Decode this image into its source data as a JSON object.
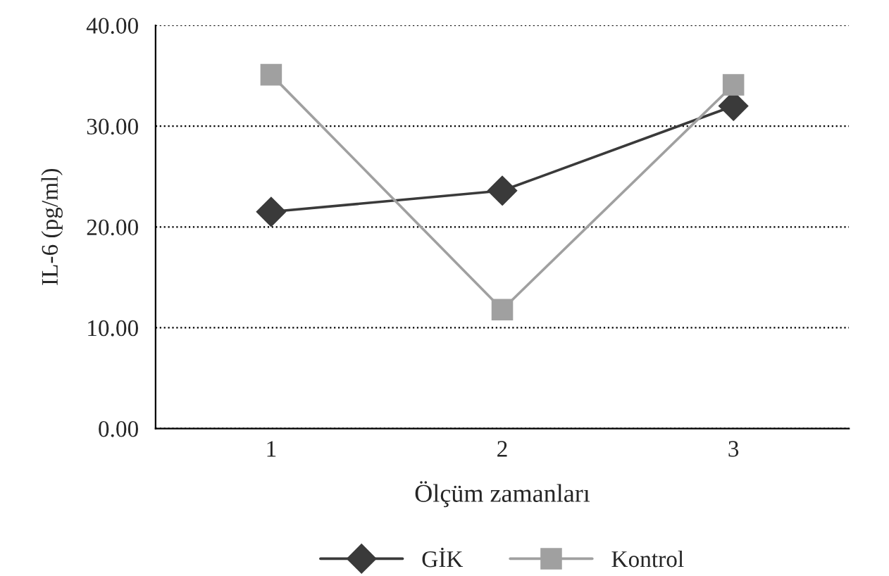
{
  "chart_data": {
    "type": "line",
    "xlabel": "Ölçüm zamanları",
    "ylabel": "IL-6 (pg/ml)",
    "categories": [
      "1",
      "2",
      "3"
    ],
    "series": [
      {
        "name": "GİK",
        "color": "#3a3a3a",
        "marker": "diamond",
        "values": [
          21.5,
          23.6,
          32.0
        ]
      },
      {
        "name": "Kontrol",
        "color": "#a0a0a0",
        "marker": "square",
        "values": [
          35.1,
          11.8,
          34.1
        ]
      }
    ],
    "ylim": [
      0,
      40
    ],
    "yticks": [
      {
        "value": 0,
        "label": "0.00"
      },
      {
        "value": 10,
        "label": "10.00"
      },
      {
        "value": 20,
        "label": "20.00"
      },
      {
        "value": 30,
        "label": "30.00"
      },
      {
        "value": 40,
        "label": "40.00"
      }
    ],
    "grid": "y",
    "legend": "bottom",
    "line_style": "solid"
  }
}
